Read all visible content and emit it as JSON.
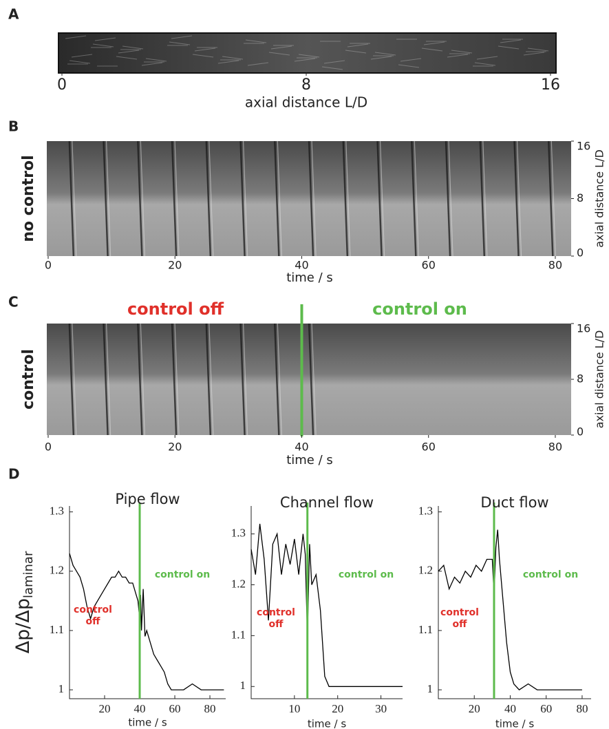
{
  "chart_data": [
    {
      "type": "image",
      "panel": "A",
      "xlabel": "axial distance L/D",
      "xlim": [
        0,
        16
      ],
      "xticks": [
        0,
        8,
        16
      ]
    },
    {
      "type": "image",
      "panel": "B",
      "ylabel": "no control",
      "xlabel": "time / s",
      "xlim": [
        0,
        82.5
      ],
      "xticks": [
        0,
        20,
        40,
        60,
        80
      ],
      "y2label": "axial distance L/D",
      "y2lim": [
        0,
        16
      ],
      "y2ticks": [
        0,
        8,
        16
      ]
    },
    {
      "type": "image",
      "panel": "C",
      "ylabel": "control",
      "xlabel": "time / s",
      "xlim": [
        0,
        82.5
      ],
      "xticks": [
        0,
        20,
        40,
        60,
        80
      ],
      "y2label": "axial distance L/D",
      "y2lim": [
        0,
        16
      ],
      "y2ticks": [
        0,
        8,
        16
      ],
      "switch": 40,
      "switch_color": "#5dbb4c",
      "annotations": [
        {
          "text": [
            "control off"
          ],
          "color": "#e0302a"
        },
        {
          "text": [
            "control on"
          ],
          "color": "#5dbb4c"
        }
      ]
    },
    {
      "type": "line",
      "panel": "D",
      "title": "Pipe flow",
      "ylabel": "Δp/Δp",
      "ylabel_sub": "laminar",
      "xlabel": "time / s",
      "xlim": [
        0,
        89
      ],
      "xticks": [
        20,
        40,
        60,
        80
      ],
      "ylim": [
        0.985,
        1.31
      ],
      "yticks": [
        1,
        1.1,
        1.2,
        1.3
      ],
      "color": "#000000",
      "switch": 40,
      "switch_color": "#5dbb4c",
      "x": [
        0,
        2,
        4,
        6,
        8,
        10,
        12,
        14,
        16,
        18,
        20,
        22,
        24,
        26,
        28,
        30,
        32,
        34,
        36,
        38,
        39,
        40,
        40.5,
        41,
        42,
        43,
        44,
        46,
        48,
        50,
        52,
        54,
        56,
        58,
        60,
        65,
        70,
        75,
        80,
        85,
        88
      ],
      "values": [
        1.23,
        1.21,
        1.2,
        1.19,
        1.17,
        1.14,
        1.12,
        1.14,
        1.15,
        1.16,
        1.17,
        1.18,
        1.19,
        1.19,
        1.2,
        1.19,
        1.19,
        1.18,
        1.18,
        1.16,
        1.15,
        1.12,
        1.16,
        1.1,
        1.17,
        1.09,
        1.1,
        1.08,
        1.06,
        1.05,
        1.04,
        1.03,
        1.01,
        1.0,
        1.0,
        1.0,
        1.01,
        1.0,
        1.0,
        1.0,
        1.0
      ],
      "annotations": [
        {
          "text": [
            "control",
            "off"
          ],
          "color": "#e0302a"
        },
        {
          "text": [
            "control on"
          ],
          "color": "#5dbb4c"
        }
      ]
    },
    {
      "type": "line",
      "title": "Channel flow",
      "xlabel": "time / s",
      "xlim": [
        0,
        35
      ],
      "xticks": [
        10,
        20,
        30
      ],
      "ylim": [
        0.976,
        1.355
      ],
      "yticks": [
        1,
        1.1,
        1.2,
        1.3
      ],
      "color": "#000000",
      "switch": 13,
      "switch_color": "#5dbb4c",
      "x": [
        0,
        1,
        2,
        3,
        4,
        5,
        6,
        7,
        8,
        9,
        10,
        11,
        12,
        12.5,
        13,
        13.5,
        14,
        15,
        16,
        17,
        18,
        20,
        25,
        30,
        35
      ],
      "values": [
        1.27,
        1.22,
        1.32,
        1.25,
        1.13,
        1.28,
        1.3,
        1.22,
        1.28,
        1.24,
        1.29,
        1.22,
        1.3,
        1.26,
        1.1,
        1.28,
        1.2,
        1.22,
        1.15,
        1.02,
        1.0,
        1.0,
        1.0,
        1.0,
        1.0
      ],
      "annotations": [
        {
          "text": [
            "control",
            "off"
          ],
          "color": "#e0302a"
        },
        {
          "text": [
            "control on"
          ],
          "color": "#5dbb4c"
        }
      ]
    },
    {
      "type": "line",
      "title": "Duct flow",
      "xlabel": "time / s",
      "xlim": [
        0,
        85
      ],
      "xticks": [
        20,
        40,
        60,
        80
      ],
      "ylim": [
        0.985,
        1.31
      ],
      "yticks": [
        1,
        1.1,
        1.2,
        1.3
      ],
      "color": "#000000",
      "switch": 31,
      "switch_color": "#5dbb4c",
      "x": [
        0,
        3,
        6,
        9,
        12,
        15,
        18,
        21,
        24,
        27,
        30,
        31,
        32,
        33,
        34,
        36,
        38,
        40,
        42,
        45,
        50,
        55,
        60,
        70,
        80
      ],
      "values": [
        1.2,
        1.21,
        1.17,
        1.19,
        1.18,
        1.2,
        1.19,
        1.21,
        1.2,
        1.22,
        1.22,
        1.16,
        1.24,
        1.27,
        1.22,
        1.15,
        1.08,
        1.03,
        1.01,
        1.0,
        1.01,
        1.0,
        1.0,
        1.0,
        1.0
      ],
      "annotations": [
        {
          "text": [
            "control",
            "off"
          ],
          "color": "#e0302a"
        },
        {
          "text": [
            "control on"
          ],
          "color": "#5dbb4c"
        }
      ]
    }
  ]
}
